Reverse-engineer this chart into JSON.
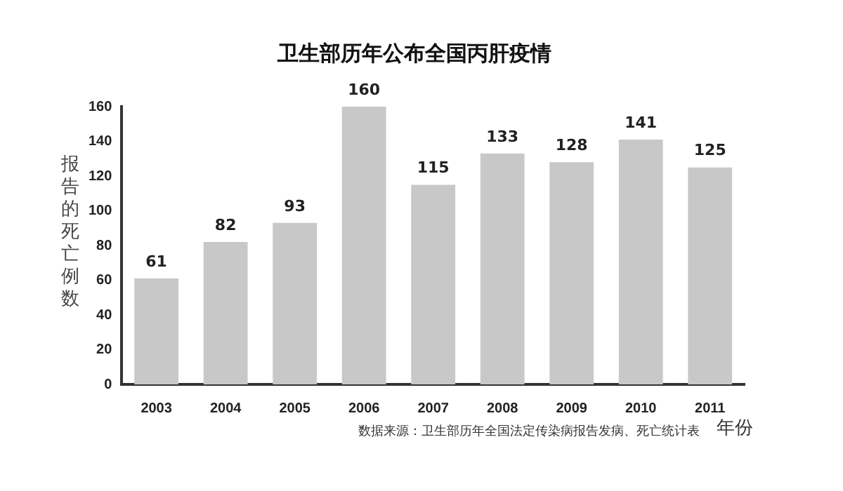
{
  "chart_data": {
    "type": "bar",
    "title": "卫生部历年公布全国丙肝疫情",
    "ylabel": "报告的死亡例数",
    "xlabel": "年份",
    "annotations": [
      "数据来源：卫生部历年全国法定传染病报告发病、死亡统计表"
    ],
    "categories": [
      "2003",
      "2004",
      "2005",
      "2006",
      "2007",
      "2008",
      "2009",
      "2010",
      "2011"
    ],
    "values": [
      61,
      82,
      93,
      160,
      115,
      133,
      128,
      141,
      125
    ],
    "color": "#c8c8c8",
    "ylim": [
      0,
      160
    ],
    "yticks": [
      0,
      20,
      40,
      60,
      80,
      100,
      120,
      140,
      160
    ],
    "grid": false,
    "data_labels": true
  }
}
